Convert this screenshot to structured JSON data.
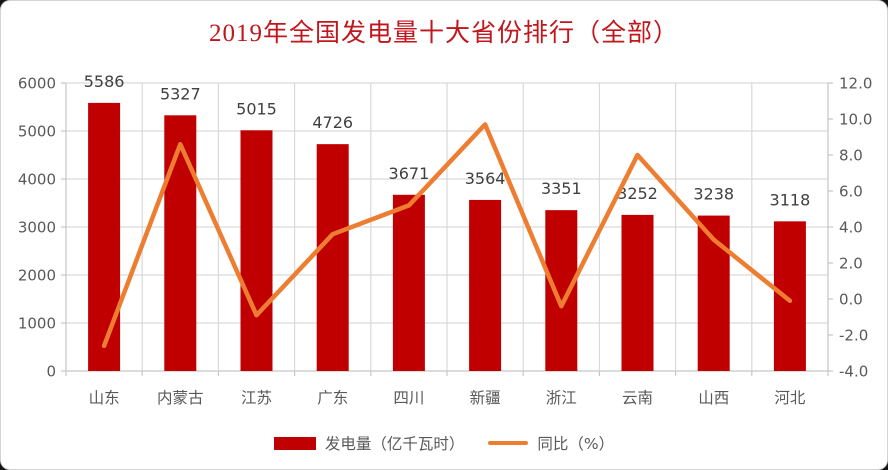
{
  "title": "2019年全国发电量十大省份排行（全部）",
  "colors": {
    "bar": "#C00000",
    "line": "#ED7D31",
    "title": "#C0161C",
    "axis_text": "#595959",
    "data_label": "#404040",
    "grid": "#D9D9D9",
    "axis_line": "#C6C6C6",
    "background": "#FFFFFF"
  },
  "chart_data": {
    "type": "bar",
    "combo": "bar+line dual-axis",
    "title": "2019年全国发电量十大省份排行（全部）",
    "categories": [
      "山东",
      "内蒙古",
      "江苏",
      "广东",
      "四川",
      "新疆",
      "浙江",
      "云南",
      "山西",
      "河北"
    ],
    "series": [
      {
        "name": "发电量（亿千瓦时）",
        "type": "bar",
        "axis": "left",
        "values": [
          5586,
          5327,
          5015,
          4726,
          3671,
          3564,
          3351,
          3252,
          3238,
          3118
        ],
        "data_labels": [
          "5586",
          "5327",
          "5015",
          "4726",
          "3671",
          "3564",
          "3351",
          "3252",
          "3238",
          "3118"
        ]
      },
      {
        "name": "同比（%）",
        "type": "line",
        "axis": "right",
        "values": [
          -2.6,
          8.6,
          -0.9,
          3.6,
          5.2,
          9.7,
          -0.4,
          8.0,
          3.3,
          -0.1
        ]
      }
    ],
    "left_axis": {
      "min": 0,
      "max": 6000,
      "step": 1000,
      "ticks": [
        "0",
        "1000",
        "2000",
        "3000",
        "4000",
        "5000",
        "6000"
      ]
    },
    "right_axis": {
      "min": -4.0,
      "max": 12.0,
      "step": 2.0,
      "ticks": [
        "-4.0",
        "-2.0",
        "0.0",
        "2.0",
        "4.0",
        "6.0",
        "8.0",
        "10.0",
        "12.0"
      ]
    },
    "grid": {
      "horizontal": true,
      "vertical": true
    },
    "legend_position": "bottom"
  },
  "legend": {
    "items": [
      {
        "label": "发电量（亿千瓦时）",
        "swatch": "bar"
      },
      {
        "label": "同比（%）",
        "swatch": "line"
      }
    ]
  }
}
